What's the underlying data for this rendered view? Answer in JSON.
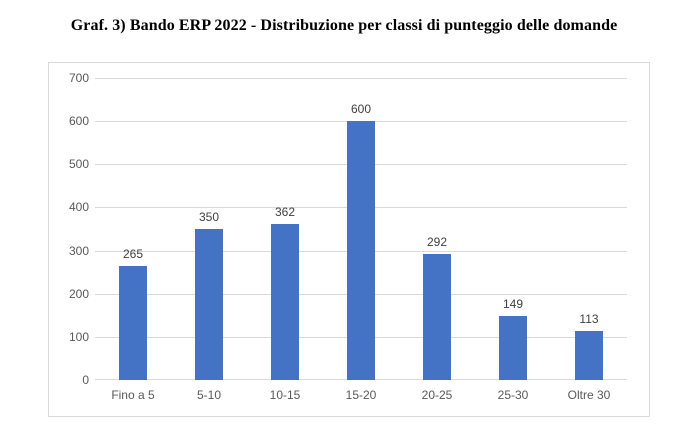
{
  "title": "Graf. 3) Bando ERP 2022 - Distribuzione per classi di punteggio delle domande",
  "chart_data": {
    "type": "bar",
    "title": "Graf. 3) Bando ERP 2022 - Distribuzione per classi di punteggio delle domande",
    "categories": [
      "Fino a 5",
      "5-10",
      "10-15",
      "15-20",
      "20-25",
      "25-30",
      "Oltre 30"
    ],
    "values": [
      265,
      350,
      362,
      600,
      292,
      149,
      113
    ],
    "xlabel": "",
    "ylabel": "",
    "ylim": [
      0,
      700
    ],
    "yticks": [
      0,
      100,
      200,
      300,
      400,
      500,
      600,
      700
    ],
    "grid": true,
    "legend": false,
    "data_labels": true,
    "colors": {
      "bar": "#4472C4",
      "gridline": "#D9D9D9",
      "axis_label": "#595959",
      "data_label": "#404040",
      "chart_border": "#D9D9D9",
      "background": "#FFFFFF"
    }
  }
}
